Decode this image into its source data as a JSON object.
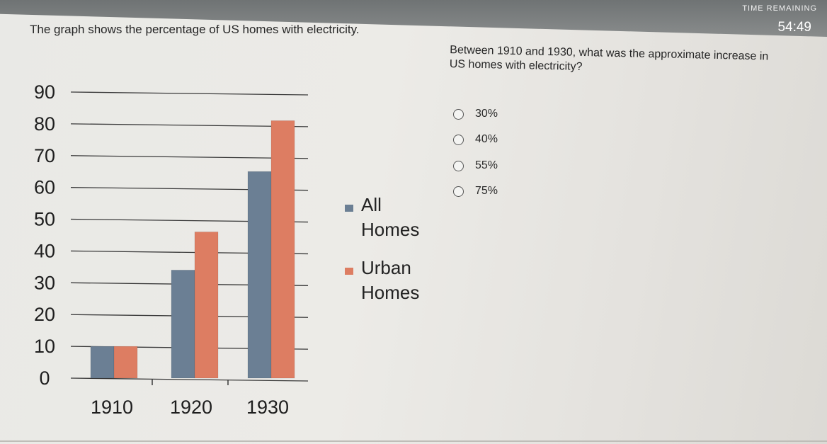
{
  "timer": {
    "label": "TIME REMAINING",
    "value": "54:49"
  },
  "question": {
    "text": "The graph shows the percentage of US homes with electricity.",
    "prompt": "Between 1910 and 1930, what was the approximate increase in US homes with electricity?"
  },
  "choices": [
    {
      "label": "30%",
      "selected": false
    },
    {
      "label": "40%",
      "selected": false
    },
    {
      "label": "55%",
      "selected": false
    },
    {
      "label": "75%",
      "selected": false
    }
  ],
  "chart_data": {
    "type": "bar",
    "categories": [
      "1910",
      "1920",
      "1930"
    ],
    "series": [
      {
        "name": "All Homes",
        "values": [
          10,
          34,
          65
        ],
        "color": "#6b7f94"
      },
      {
        "name": "Urban Homes",
        "values": [
          10,
          46,
          81
        ],
        "color": "#dd7d62"
      }
    ],
    "yticks": [
      0,
      10,
      20,
      30,
      40,
      50,
      60,
      70,
      80,
      90
    ],
    "ylim": [
      0,
      90
    ],
    "grid": true,
    "legend_position": "right",
    "legend": [
      {
        "lines": [
          "All",
          "Homes"
        ],
        "color": "#6b7f94"
      },
      {
        "lines": [
          "Urban",
          "Homes"
        ],
        "color": "#dd7d62"
      }
    ]
  }
}
